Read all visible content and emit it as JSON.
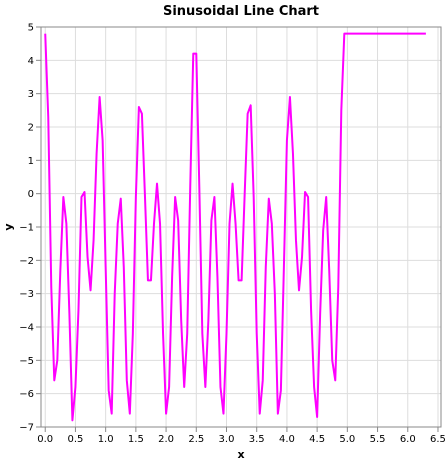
{
  "chart_data": {
    "type": "line",
    "title": "Sinusoidal Line Chart",
    "xlabel": "x",
    "ylabel": "y",
    "xlim": [
      -0.07,
      6.55
    ],
    "ylim": [
      -7,
      5
    ],
    "x_ticks": [
      0.0,
      0.5,
      1.0,
      1.5,
      2.0,
      2.5,
      3.0,
      3.5,
      4.0,
      4.5,
      5.0,
      5.5,
      6.0,
      6.5
    ],
    "x_tick_labels": [
      "0.0",
      "0.5",
      "1.0",
      "1.5",
      "2.0",
      "2.5",
      "3.0",
      "3.5",
      "4.0",
      "4.5",
      "5.0",
      "5.5",
      "6.0",
      "6.5"
    ],
    "y_ticks": [
      -7,
      -6,
      -5,
      -4,
      -3,
      -2,
      -1,
      0,
      1,
      2,
      3,
      4,
      5
    ],
    "y_tick_labels": [
      "−7",
      "−6",
      "−5",
      "−4",
      "−3",
      "−2",
      "−1",
      "0",
      "1",
      "2",
      "3",
      "4",
      "5"
    ],
    "grid": true,
    "series": [
      {
        "color": "#ff00ff",
        "x": [
          0.0,
          0.05,
          0.1,
          0.15,
          0.2,
          0.25,
          0.3,
          0.35,
          0.4,
          0.45,
          0.5,
          0.55,
          0.6,
          0.65,
          0.7,
          0.75,
          0.8,
          0.85,
          0.9,
          0.95,
          1.0,
          1.05,
          1.1,
          1.15,
          1.2,
          1.25,
          1.3,
          1.35,
          1.4,
          1.45,
          1.5,
          1.55,
          1.6,
          1.65,
          1.7,
          1.75,
          1.8,
          1.85,
          1.9,
          1.95,
          2.0,
          2.05,
          2.1,
          2.15,
          2.2,
          2.25,
          2.3,
          2.35,
          2.4,
          2.45,
          2.5,
          2.55,
          2.6,
          2.65,
          2.7,
          2.75,
          2.8,
          2.85,
          2.9,
          2.95,
          3.0,
          3.05,
          3.1,
          3.15,
          3.2,
          3.25,
          3.3,
          3.35,
          3.4,
          3.45,
          3.5,
          3.55,
          3.6,
          3.65,
          3.7,
          3.75,
          3.8,
          3.85,
          3.9,
          3.95,
          4.0,
          4.05,
          4.1,
          4.15,
          4.2,
          4.25,
          4.3,
          4.35,
          4.4,
          4.45,
          4.5,
          4.55,
          4.6,
          4.65,
          4.7,
          4.75,
          4.8,
          4.85,
          4.9,
          4.95,
          5.0,
          5.05,
          5.1,
          5.15,
          5.2,
          5.25,
          5.3,
          5.35,
          5.4,
          5.45,
          5.5,
          5.55,
          5.6,
          5.65,
          5.7,
          5.75,
          5.8,
          5.85,
          5.9,
          5.95,
          6.0,
          6.05,
          6.1,
          6.15,
          6.2,
          6.25,
          6.3
        ],
        "y": [
          4.8,
          2.3,
          -2.8,
          -5.6,
          -5.0,
          -2.3,
          -0.1,
          -0.9,
          -3.6,
          -6.8,
          -5.8,
          -3.5,
          -0.1,
          0.05,
          -1.9,
          -2.9,
          -1.4,
          1.2,
          2.9,
          1.6,
          -2.2,
          -5.9,
          -6.6,
          -3.0,
          -0.9,
          -0.15,
          -2.2,
          -5.6,
          -6.6,
          -4.2,
          -0.1,
          2.6,
          2.4,
          -0.05,
          -2.6,
          -2.6,
          -0.9,
          0.3,
          -0.9,
          -4.2,
          -6.6,
          -5.8,
          -2.5,
          -0.1,
          -0.8,
          -3.8,
          -5.8,
          -4.2,
          0.2,
          4.2,
          4.2,
          0.2,
          -4.2,
          -5.8,
          -3.8,
          -0.8,
          -0.1,
          -2.5,
          -5.8,
          -6.6,
          -4.2,
          -0.9,
          0.3,
          -0.9,
          -2.6,
          -2.6,
          -0.05,
          2.4,
          2.65,
          -0.1,
          -4.2,
          -6.6,
          -5.6,
          -2.2,
          -0.15,
          -0.9,
          -3.0,
          -6.6,
          -5.9,
          -2.2,
          1.6,
          2.9,
          1.2,
          -1.4,
          -2.9,
          -1.9,
          0.05,
          -0.1,
          -3.5,
          -5.8,
          -6.7,
          -3.6,
          -1.1,
          -0.1,
          -2.3,
          -5.0,
          -5.6,
          -2.8,
          2.5,
          4.8,
          4.8,
          4.8,
          4.8,
          4.8,
          4.8,
          4.8,
          4.8,
          4.8,
          4.8,
          4.8,
          4.8,
          4.8,
          4.8,
          4.8,
          4.8,
          4.8,
          4.8,
          4.8,
          4.8,
          4.8,
          4.8,
          4.8,
          4.8,
          4.8,
          4.8,
          4.8,
          4.8
        ]
      }
    ]
  }
}
